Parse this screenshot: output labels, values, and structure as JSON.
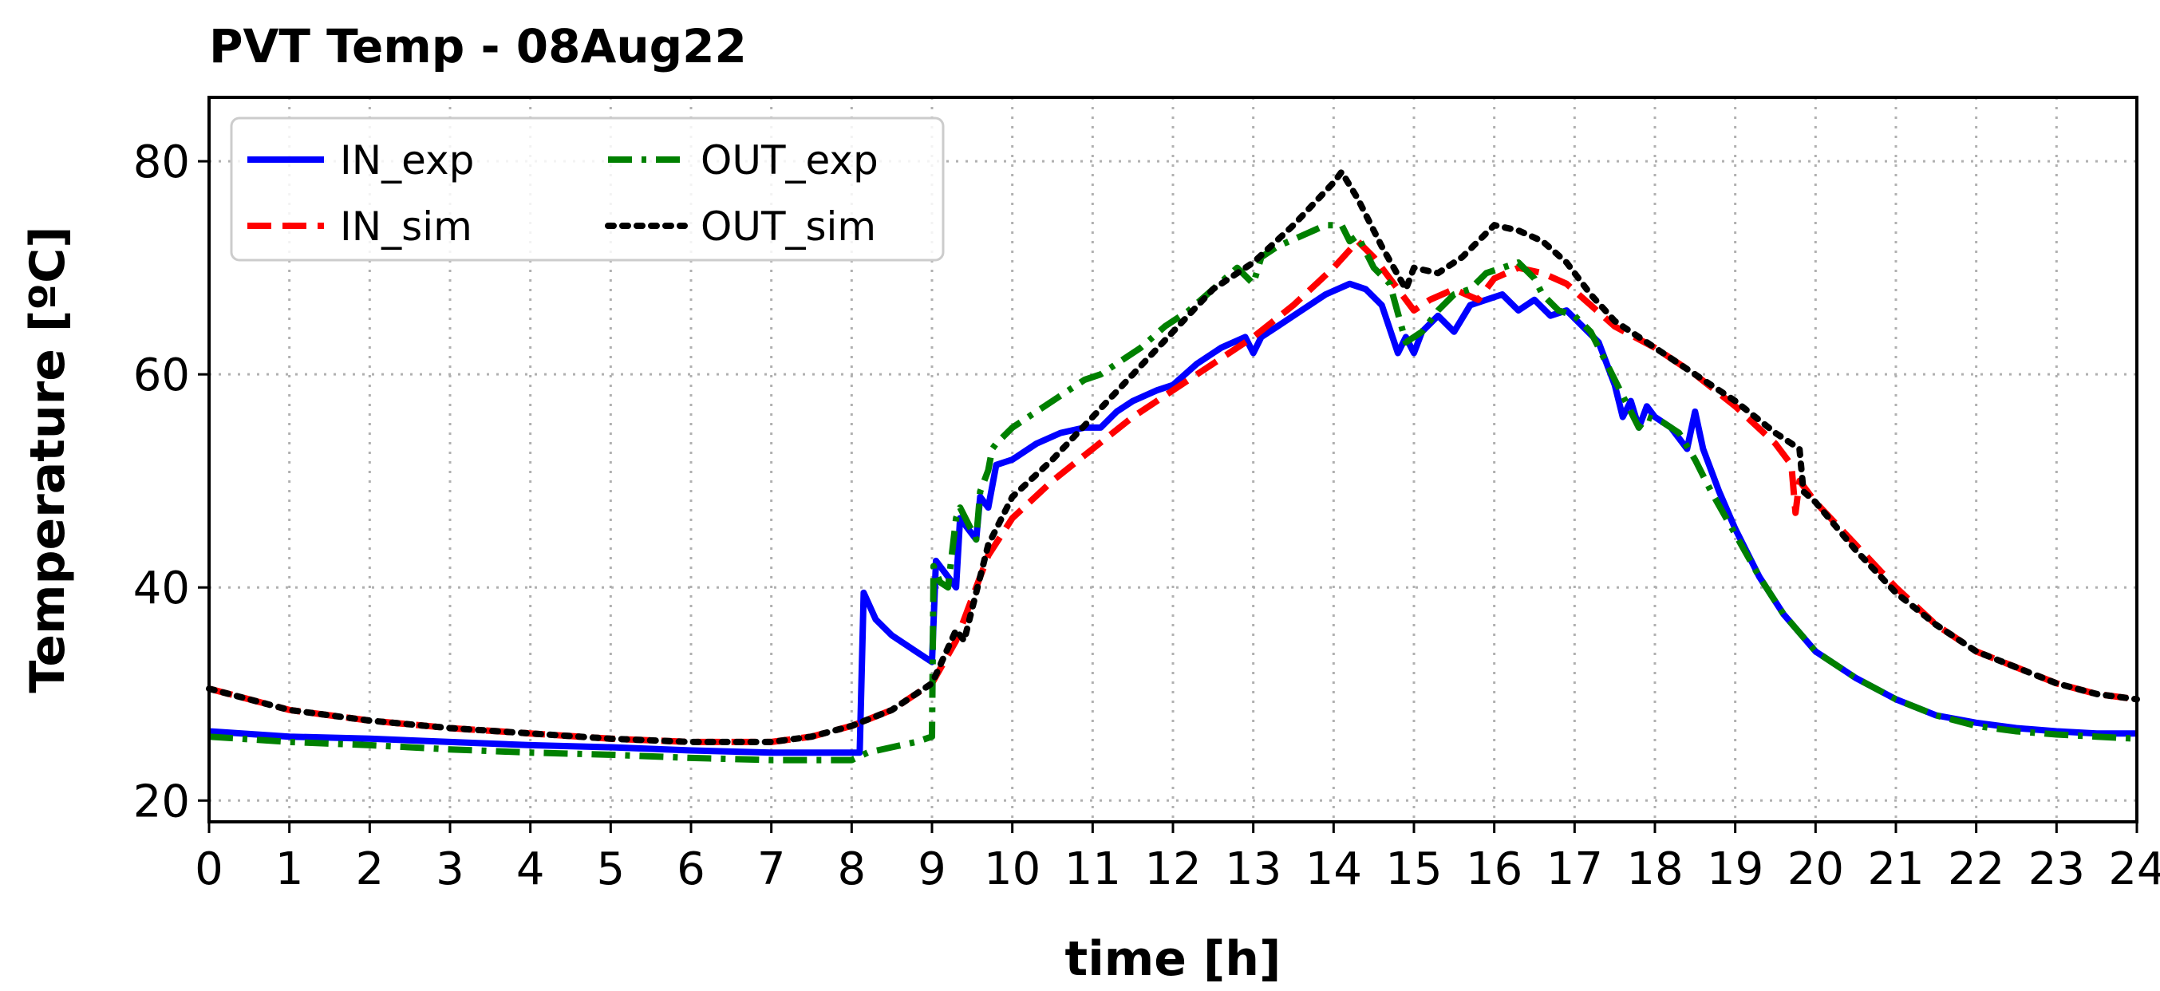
{
  "chart_data": {
    "type": "line",
    "title": "PVT Temp - 08Aug22",
    "xlabel": "time [h]",
    "ylabel": "Temperature [ºC]",
    "xlim": [
      0,
      24
    ],
    "ylim": [
      18,
      86
    ],
    "xticks": [
      0,
      1,
      2,
      3,
      4,
      5,
      6,
      7,
      8,
      9,
      10,
      11,
      12,
      13,
      14,
      15,
      16,
      17,
      18,
      19,
      20,
      21,
      22,
      23,
      24
    ],
    "yticks": [
      20,
      40,
      60,
      80
    ],
    "grid": true,
    "legend_position": "top-left",
    "series": [
      {
        "name": "IN_exp",
        "color": "#0000ff",
        "style": "solid",
        "x": [
          0,
          1,
          2,
          3,
          4,
          5,
          6,
          7,
          8.0,
          8.1,
          8.15,
          8.3,
          8.5,
          8.7,
          9.0,
          9.05,
          9.2,
          9.3,
          9.35,
          9.45,
          9.55,
          9.6,
          9.7,
          9.8,
          10.0,
          10.3,
          10.6,
          10.9,
          11.1,
          11.3,
          11.5,
          11.8,
          12.0,
          12.3,
          12.6,
          12.9,
          13.0,
          13.1,
          13.3,
          13.6,
          13.9,
          14.2,
          14.4,
          14.6,
          14.8,
          14.9,
          15.0,
          15.1,
          15.3,
          15.5,
          15.7,
          15.9,
          16.1,
          16.3,
          16.5,
          16.7,
          16.9,
          17.1,
          17.3,
          17.5,
          17.6,
          17.7,
          17.8,
          17.9,
          18.0,
          18.2,
          18.4,
          18.5,
          18.6,
          18.8,
          19.0,
          19.3,
          19.6,
          20.0,
          20.5,
          21.0,
          21.5,
          22.0,
          22.5,
          23.0,
          23.5,
          24.0
        ],
        "y": [
          26.5,
          26.0,
          25.8,
          25.5,
          25.2,
          25.0,
          24.7,
          24.5,
          24.5,
          24.5,
          39.5,
          37.0,
          35.5,
          34.5,
          33.0,
          42.5,
          41.0,
          40.0,
          46.5,
          45.5,
          44.5,
          48.5,
          47.5,
          51.5,
          52.0,
          53.5,
          54.5,
          55.0,
          55.0,
          56.5,
          57.5,
          58.5,
          59.0,
          61.0,
          62.5,
          63.5,
          62.0,
          63.5,
          64.5,
          66.0,
          67.5,
          68.5,
          68.0,
          66.5,
          62.0,
          63.5,
          62.0,
          64.0,
          65.5,
          64.0,
          66.5,
          67.0,
          67.5,
          66.0,
          67.0,
          65.5,
          66.0,
          64.5,
          63.0,
          59.0,
          56.0,
          57.5,
          55.0,
          57.0,
          56.0,
          55.0,
          53.0,
          56.5,
          53.0,
          49.0,
          45.5,
          41.0,
          37.5,
          34.0,
          31.5,
          29.5,
          28.0,
          27.3,
          26.8,
          26.5,
          26.3,
          26.3
        ]
      },
      {
        "name": "IN_sim",
        "color": "#ff0000",
        "style": "dashed",
        "x": [
          0,
          1,
          2,
          3,
          4,
          5,
          6,
          7,
          7.5,
          8.0,
          8.5,
          9.0,
          9.3,
          9.5,
          9.7,
          10.0,
          10.5,
          11.0,
          11.5,
          12.0,
          12.5,
          13.0,
          13.5,
          14.0,
          14.3,
          14.5,
          14.8,
          15.0,
          15.2,
          15.5,
          15.8,
          16.0,
          16.3,
          16.6,
          16.9,
          17.2,
          17.5,
          18.0,
          18.5,
          19.0,
          19.5,
          19.7,
          19.75,
          19.8,
          20.0,
          20.5,
          21.0,
          21.5,
          22.0,
          22.5,
          23.0,
          23.5,
          24.0
        ],
        "y": [
          30.5,
          28.5,
          27.5,
          26.8,
          26.3,
          25.8,
          25.5,
          25.5,
          26.0,
          27.0,
          28.5,
          31.0,
          35.0,
          39.0,
          43.0,
          46.5,
          50.0,
          53.0,
          56.0,
          58.5,
          61.0,
          63.5,
          66.5,
          70.0,
          72.5,
          71.0,
          68.0,
          66.0,
          67.0,
          68.0,
          67.0,
          69.0,
          70.0,
          69.5,
          68.5,
          66.5,
          64.5,
          62.5,
          60.0,
          57.0,
          53.5,
          51.5,
          47.0,
          50.0,
          48.0,
          44.0,
          40.0,
          36.5,
          34.0,
          32.5,
          31.0,
          30.0,
          29.5
        ]
      },
      {
        "name": "OUT_exp",
        "color": "#008000",
        "style": "dashdot",
        "x": [
          0,
          1,
          2,
          3,
          4,
          5,
          6,
          7,
          7.5,
          8.0,
          8.2,
          8.5,
          8.8,
          9.0,
          9.02,
          9.1,
          9.2,
          9.3,
          9.35,
          9.45,
          9.55,
          9.6,
          9.7,
          9.75,
          9.8,
          10.0,
          10.3,
          10.6,
          10.9,
          11.1,
          11.3,
          11.6,
          11.9,
          12.2,
          12.5,
          12.8,
          13.0,
          13.1,
          13.3,
          13.6,
          13.9,
          14.1,
          14.2,
          14.3,
          14.5,
          14.7,
          14.9,
          15.0,
          15.1,
          15.3,
          15.5,
          15.7,
          15.9,
          16.1,
          16.3,
          16.5,
          16.6,
          16.8,
          17.0,
          17.2,
          17.4,
          17.6,
          17.8,
          17.9,
          18.1,
          18.3,
          18.5,
          18.7,
          19.0,
          19.3,
          19.6,
          20.0,
          20.5,
          21.0,
          21.5,
          22.0,
          22.5,
          23.0,
          23.5,
          24.0
        ],
        "y": [
          26.0,
          25.5,
          25.2,
          24.8,
          24.5,
          24.3,
          24.0,
          23.8,
          23.8,
          23.8,
          24.5,
          25.0,
          25.5,
          26.0,
          42.0,
          40.5,
          40.0,
          46.5,
          47.5,
          46.0,
          44.5,
          49.0,
          51.0,
          53.0,
          53.5,
          55.0,
          56.5,
          58.0,
          59.5,
          60.0,
          61.0,
          62.5,
          64.5,
          66.0,
          68.0,
          70.0,
          68.5,
          71.0,
          72.0,
          73.0,
          74.0,
          74.0,
          72.5,
          73.0,
          70.0,
          68.5,
          63.0,
          63.5,
          64.0,
          66.0,
          67.5,
          68.0,
          69.5,
          70.0,
          70.5,
          69.0,
          67.5,
          66.0,
          65.5,
          64.0,
          61.0,
          58.0,
          55.0,
          56.0,
          55.5,
          54.5,
          52.0,
          49.0,
          45.0,
          41.0,
          37.5,
          34.0,
          31.5,
          29.5,
          28.0,
          27.0,
          26.5,
          26.2,
          26.0,
          25.8
        ]
      },
      {
        "name": "OUT_sim",
        "color": "#000000",
        "style": "dotted",
        "x": [
          0,
          1,
          2,
          3,
          4,
          5,
          6,
          7,
          7.5,
          8.0,
          8.5,
          9.0,
          9.3,
          9.4,
          9.5,
          9.6,
          9.7,
          10.0,
          10.5,
          11.0,
          11.5,
          12.0,
          12.5,
          13.0,
          13.5,
          14.0,
          14.1,
          14.3,
          14.6,
          14.9,
          15.0,
          15.3,
          15.6,
          16.0,
          16.3,
          16.6,
          16.9,
          17.2,
          17.5,
          18.0,
          18.5,
          19.0,
          19.5,
          19.8,
          19.85,
          20.0,
          20.5,
          21.0,
          21.5,
          22.0,
          22.5,
          23.0,
          23.5,
          24.0
        ],
        "y": [
          30.5,
          28.5,
          27.5,
          26.8,
          26.3,
          25.8,
          25.5,
          25.5,
          26.0,
          27.0,
          28.5,
          31.0,
          36.0,
          35.0,
          38.0,
          41.0,
          44.0,
          48.5,
          52.0,
          56.0,
          60.0,
          64.0,
          68.0,
          70.5,
          74.0,
          78.0,
          79.0,
          76.5,
          72.0,
          68.0,
          70.0,
          69.5,
          71.0,
          74.0,
          73.5,
          72.5,
          70.5,
          67.5,
          65.0,
          62.5,
          60.0,
          57.5,
          54.5,
          53.0,
          49.0,
          48.0,
          43.5,
          39.5,
          36.5,
          34.0,
          32.5,
          31.0,
          30.0,
          29.5
        ]
      }
    ]
  }
}
